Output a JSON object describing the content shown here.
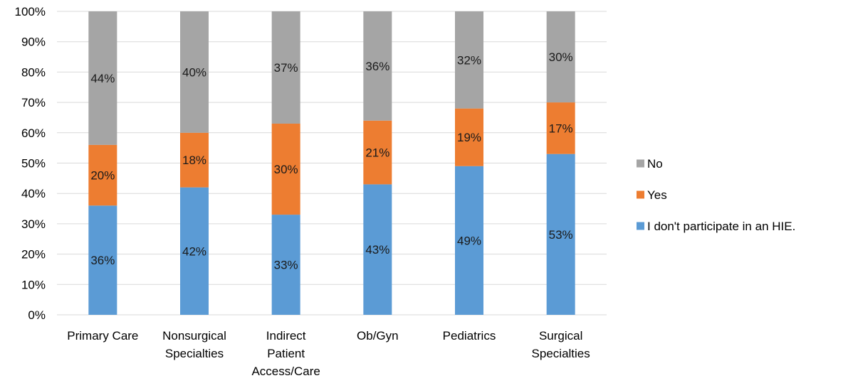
{
  "chart_data": {
    "type": "bar",
    "stacked": true,
    "title": "",
    "xlabel": "",
    "ylabel": "",
    "ylim": [
      0,
      100
    ],
    "y_ticks": [
      "0%",
      "10%",
      "20%",
      "30%",
      "40%",
      "50%",
      "60%",
      "70%",
      "80%",
      "90%",
      "100%"
    ],
    "grid": true,
    "legend_position": "right",
    "categories": [
      [
        "Primary Care"
      ],
      [
        "Nonsurgical",
        "Specialties"
      ],
      [
        "Indirect",
        "Patient",
        "Access/Care"
      ],
      [
        "Ob/Gyn"
      ],
      [
        "Pediatrics"
      ],
      [
        "Surgical",
        "Specialties"
      ]
    ],
    "series": [
      {
        "name": "I don't participate in an HIE.",
        "color": "#5b9bd5",
        "values": [
          36,
          42,
          33,
          43,
          49,
          53
        ],
        "labels": [
          "36%",
          "42%",
          "33%",
          "43%",
          "49%",
          "53%"
        ]
      },
      {
        "name": "Yes",
        "color": "#ed7d31",
        "values": [
          20,
          18,
          30,
          21,
          19,
          17
        ],
        "labels": [
          "20%",
          "18%",
          "30%",
          "21%",
          "19%",
          "17%"
        ]
      },
      {
        "name": "No",
        "color": "#a5a5a5",
        "values": [
          44,
          40,
          37,
          36,
          32,
          30
        ],
        "labels": [
          "44%",
          "40%",
          "37%",
          "36%",
          "32%",
          "30%"
        ]
      }
    ],
    "legend_order": [
      "No",
      "Yes",
      "I don't participate in an HIE."
    ]
  }
}
